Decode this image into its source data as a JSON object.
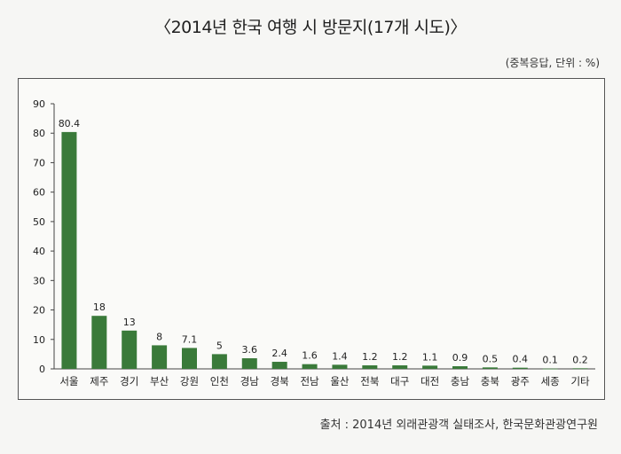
{
  "chart_data": {
    "type": "bar",
    "title": "〈2014년 한국 여행 시 방문지(17개 시도)〉",
    "note": "(중복응답, 단위 : %)",
    "source": "출처 : 2014년 외래관광객 실태조사, 한국문화관광연구원",
    "categories": [
      "서울",
      "제주",
      "경기",
      "부산",
      "강원",
      "인천",
      "경남",
      "경북",
      "전남",
      "울산",
      "전북",
      "대구",
      "대전",
      "충남",
      "충북",
      "광주",
      "세종",
      "기타"
    ],
    "values": [
      80.4,
      18,
      13,
      8,
      7.1,
      5,
      3.6,
      2.4,
      1.6,
      1.4,
      1.2,
      1.2,
      1.1,
      0.9,
      0.5,
      0.4,
      0.1,
      0.2
    ],
    "value_labels": [
      "80.4",
      "18",
      "13",
      "8",
      "7.1",
      "5",
      "3.6",
      "2.4",
      "1.6",
      "1.4",
      "1.2",
      "1.2",
      "1.1",
      "0.9",
      "0.5",
      "0.4",
      "0.1",
      "0.2"
    ],
    "ylim": [
      0,
      90
    ],
    "yticks": [
      0,
      10,
      20,
      30,
      40,
      50,
      60,
      70,
      80,
      90
    ],
    "bar_color": "#3a7a3a",
    "grid": false
  }
}
